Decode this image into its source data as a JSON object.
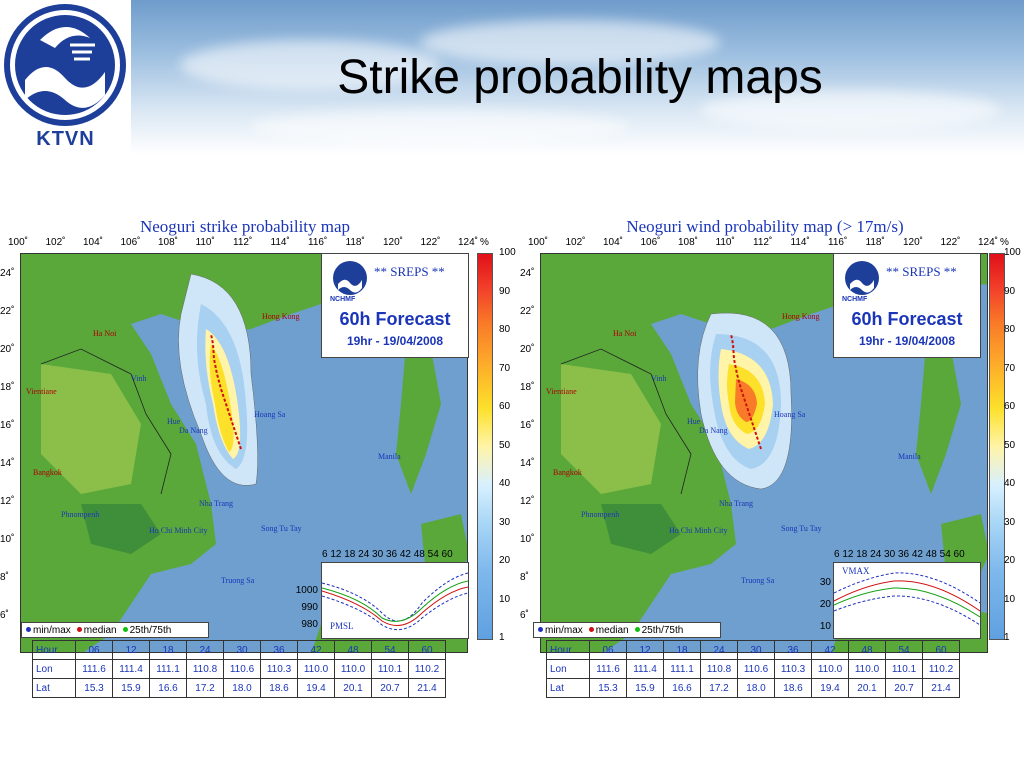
{
  "header": {
    "logo_text": "KTVN",
    "title": "Strike probability maps"
  },
  "left": {
    "title": "Neoguri strike probability map",
    "sreps": "** SREPS **",
    "forecast": "60h Forecast",
    "date": "19hr - 19/04/2008",
    "nchmf": "NCHMF",
    "mini_label": "PMSL",
    "mini_yticks": [
      "1000",
      "990",
      "980"
    ]
  },
  "right": {
    "title": "Neoguri wind probability map (> 17m/s)",
    "sreps": "** SREPS **",
    "forecast": "60h Forecast",
    "date": "19hr - 19/04/2008",
    "nchmf": "NCHMF",
    "mini_label": "VMAX",
    "mini_yticks": [
      "30",
      "20",
      "10"
    ]
  },
  "lon_ticks": [
    "100˚",
    "102˚",
    "104˚",
    "106˚",
    "108˚",
    "110˚",
    "112˚",
    "114˚",
    "116˚",
    "118˚",
    "120˚",
    "122˚",
    "124˚"
  ],
  "lat_ticks": [
    "24˚",
    "22˚",
    "20˚",
    "18˚",
    "16˚",
    "14˚",
    "12˚",
    "10˚",
    "8˚",
    "6˚"
  ],
  "colorbar_unit": "%",
  "colorbar_ticks": [
    "100",
    "90",
    "80",
    "70",
    "60",
    "50",
    "40",
    "30",
    "20",
    "10",
    "1"
  ],
  "mini_hours": "6 12 18 24 30 36 42 48 54 60",
  "legend": {
    "minmax": "min/max",
    "median": "median",
    "pct": "25th/75th"
  },
  "cities": {
    "hong_kong": "Hong Kong",
    "ha_noi": "Ha Noi",
    "vinh": "Vinh",
    "vientiane": "Vientiane",
    "hue": "Hue",
    "da_nang": "Da Nang",
    "hoang_sa": "Hoang Sa",
    "manila": "Manila",
    "bangkok": "Bangkok",
    "nha_trang": "Nha Trang",
    "phnom_penh": "Phnompenh",
    "hcm": "Ho Chi Minh City",
    "truong_sa": "Truong Sa",
    "song_tu_tay": "Song Tu Tay"
  },
  "table": {
    "row_labels": [
      "Hour",
      "Lon",
      "Lat"
    ],
    "hour": [
      "06",
      "12",
      "18",
      "24",
      "30",
      "36",
      "42",
      "48",
      "54",
      "60"
    ],
    "lon": [
      "111.6",
      "111.4",
      "111.1",
      "110.8",
      "110.6",
      "110.3",
      "110.0",
      "110.0",
      "110.1",
      "110.2"
    ],
    "lat": [
      "15.3",
      "15.9",
      "16.6",
      "17.2",
      "18.0",
      "18.6",
      "19.4",
      "20.1",
      "20.7",
      "21.4"
    ]
  },
  "colors": {
    "title_blue": "#1a35b8",
    "track_red": "#d01010",
    "land_green": "#5aa83a",
    "sea_blue": "#6e9fce"
  }
}
